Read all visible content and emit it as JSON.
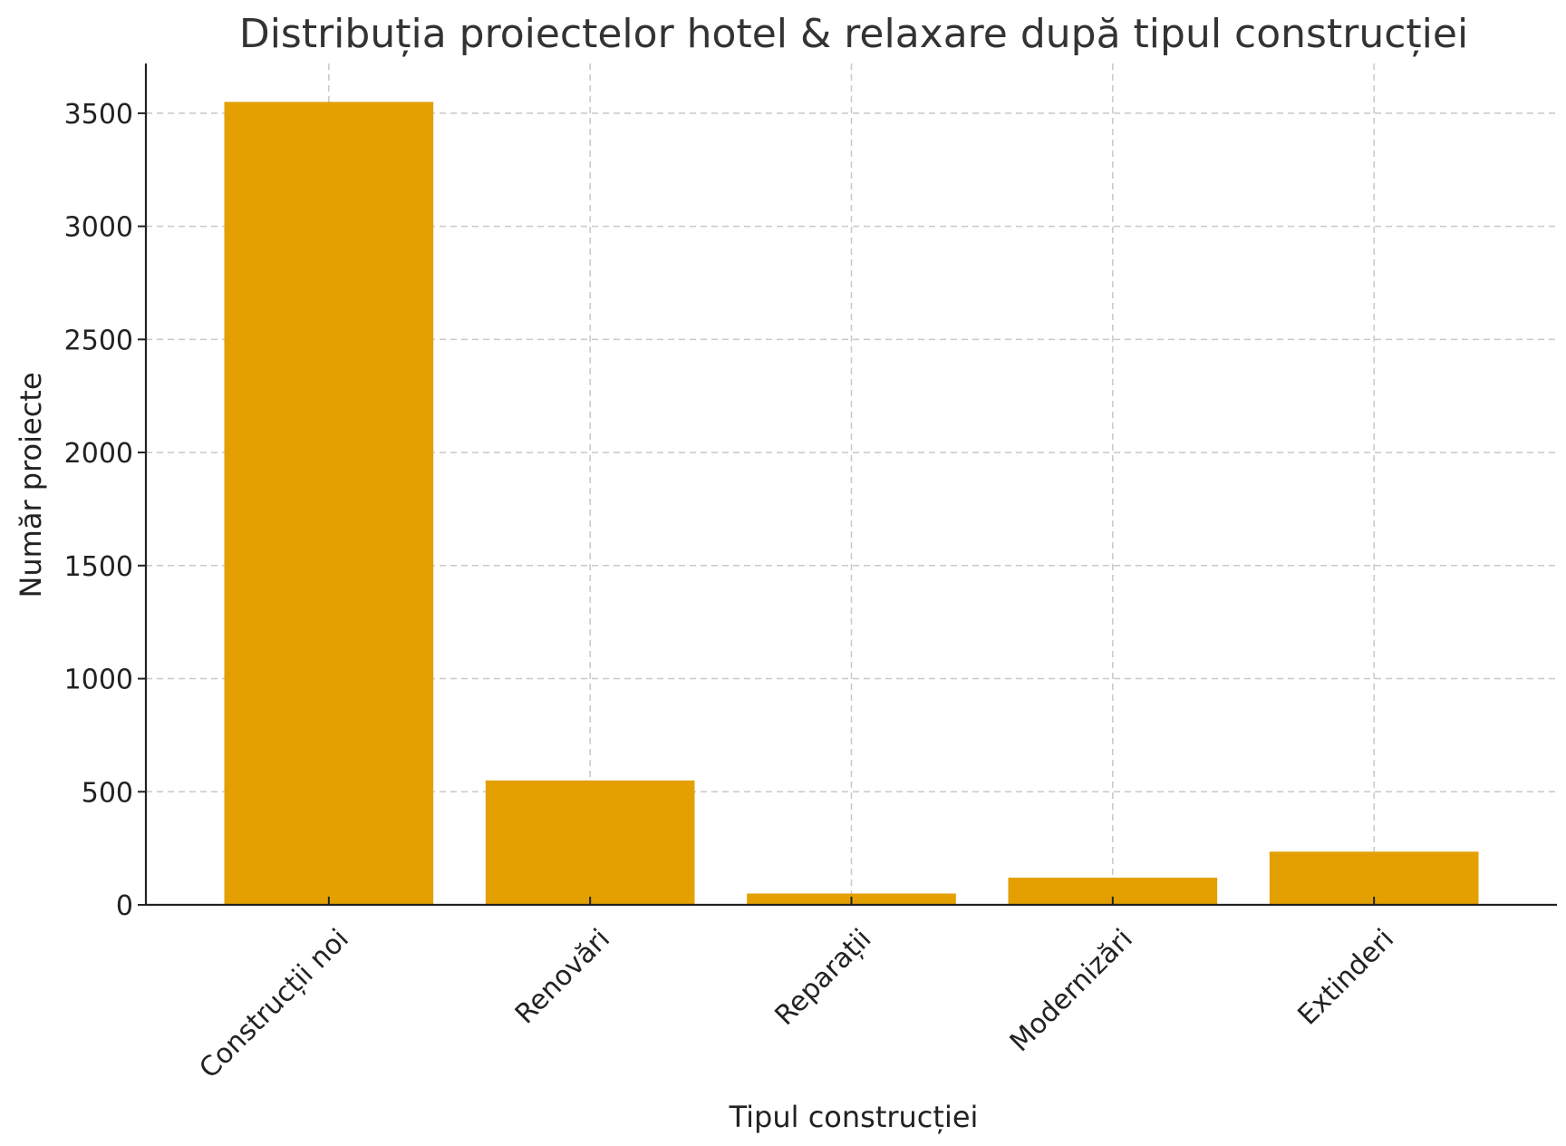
{
  "chart_data": {
    "type": "bar",
    "title": "Distribuția proiectelor hotel & relaxare după tipul construcției",
    "xlabel": "Tipul construcției",
    "ylabel": "Număr proiecte",
    "categories": [
      "Construcții noi",
      "Renovări",
      "Reparații",
      "Modernizări",
      "Extinderi"
    ],
    "values": [
      3550,
      550,
      50,
      120,
      235
    ],
    "ylim": [
      0,
      3720
    ],
    "yticks": [
      0,
      500,
      1000,
      1500,
      2000,
      2500,
      3000,
      3500
    ],
    "grid": true,
    "bar_color": "#e3a000",
    "legend": "none"
  }
}
